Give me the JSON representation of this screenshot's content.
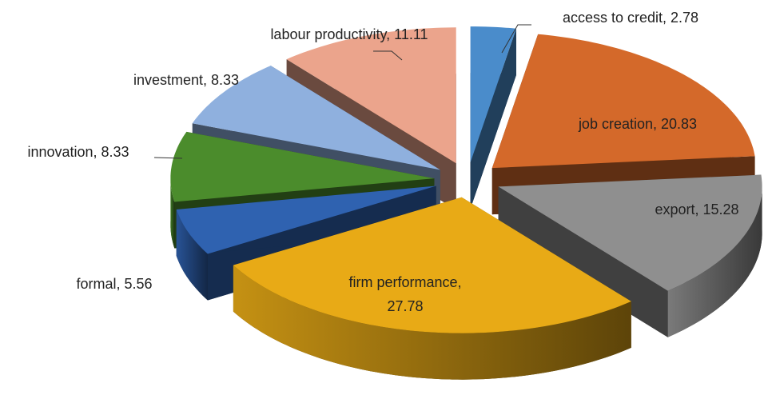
{
  "chart_data": {
    "type": "pie",
    "values": [
      2.78,
      20.83,
      15.28,
      27.78,
      5.56,
      8.33,
      8.33,
      11.11
    ],
    "value_labels": [
      "access to credit, 2.78",
      "job creation, 20.83",
      "export, 15.28",
      "firm performance, 27.78",
      "formal, 5.56",
      "innovation, 8.33",
      "investment, 8.33",
      "labour productivity, 11.11"
    ],
    "colors": [
      "#4a8ccb",
      "#d4692a",
      "#8f8f8f",
      "#e8aa16",
      "#2f62b0",
      "#4b8c2c",
      "#8fb0de",
      "#eba48c"
    ],
    "three_d": true,
    "exploded": true
  }
}
